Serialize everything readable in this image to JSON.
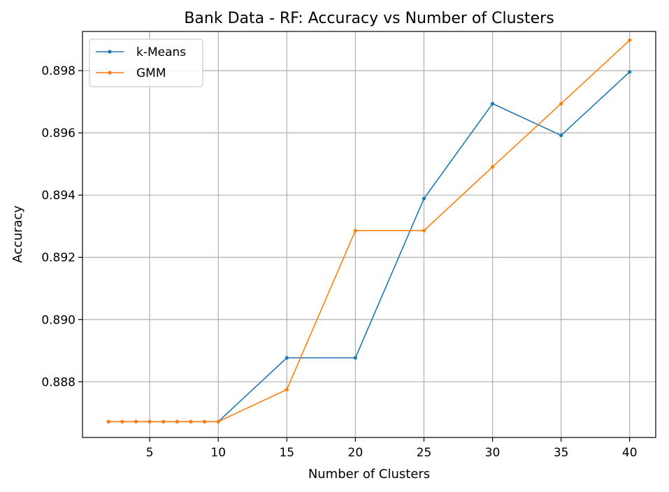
{
  "chart_data": {
    "type": "line",
    "title": "Bank Data - RF: Accuracy vs Number of Clusters",
    "xlabel": "Number of Clusters",
    "ylabel": "Accuracy",
    "xlim": [
      0.1,
      41.9
    ],
    "ylim": [
      0.88621,
      0.89926
    ],
    "xticks": [
      5,
      10,
      15,
      20,
      25,
      30,
      35,
      40
    ],
    "xtick_labels": [
      "5",
      "10",
      "15",
      "20",
      "25",
      "30",
      "35",
      "40"
    ],
    "yticks": [
      0.888,
      0.89,
      0.892,
      0.894,
      0.896,
      0.898
    ],
    "ytick_labels": [
      "0.888",
      "0.890",
      "0.892",
      "0.894",
      "0.896",
      "0.898"
    ],
    "grid": true,
    "legend_position": "top-left",
    "x": [
      2,
      3,
      4,
      5,
      6,
      7,
      8,
      9,
      10,
      15,
      20,
      25,
      30,
      35,
      40
    ],
    "series": [
      {
        "name": "k-Means",
        "color": "#1f77b4",
        "values": [
          0.88672,
          0.88672,
          0.88672,
          0.88672,
          0.88672,
          0.88672,
          0.88672,
          0.88672,
          0.88672,
          0.88877,
          0.88877,
          0.89389,
          0.89694,
          0.89592,
          0.89796
        ]
      },
      {
        "name": "GMM",
        "color": "#ff7f0e",
        "values": [
          0.88672,
          0.88672,
          0.88672,
          0.88672,
          0.88672,
          0.88672,
          0.88672,
          0.88672,
          0.88672,
          0.88775,
          0.89286,
          0.89286,
          0.89491,
          0.89694,
          0.89898
        ]
      }
    ]
  }
}
